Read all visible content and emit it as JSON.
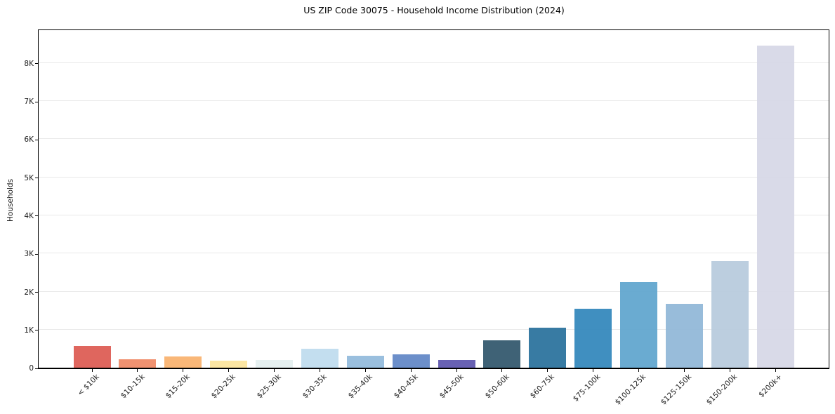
{
  "figure": {
    "background": "#ffffff"
  },
  "chart_data": {
    "type": "bar",
    "title": "US ZIP Code 30075 - Household Income Distribution (2024)",
    "xlabel": "",
    "ylabel": "Households",
    "categories": [
      "< $10k",
      "$10-15k",
      "$15-20k",
      "$20-25k",
      "$25-30k",
      "$30-35k",
      "$35-40k",
      "$40-45k",
      "$45-50k",
      "$50-60k",
      "$60-75k",
      "$75-100k",
      "$100-125k",
      "$125-150k",
      "$150-200k",
      "$200k+"
    ],
    "values": [
      570,
      215,
      295,
      185,
      210,
      500,
      310,
      355,
      200,
      720,
      1060,
      1550,
      2240,
      1680,
      2800,
      8450
    ],
    "bar_colors": [
      "#dd5a52",
      "#ef8a66",
      "#f9b26e",
      "#fce49c",
      "#e4efef",
      "#bedcee",
      "#92badb",
      "#6186c6",
      "#5d55ad",
      "#30566c",
      "#29719c",
      "#3287bb",
      "#5fa5cd",
      "#90b7d7",
      "#b7cadd",
      "#d6d7e6"
    ],
    "y_ticks": [
      "0",
      "1K",
      "2K",
      "3K",
      "4K",
      "5K",
      "6K",
      "7K",
      "8K"
    ],
    "y_tick_interval": 1000,
    "ylim": [
      0,
      8900
    ],
    "grid": "horizontal",
    "gridline_color": "#e9e9e9",
    "legend": "none"
  }
}
